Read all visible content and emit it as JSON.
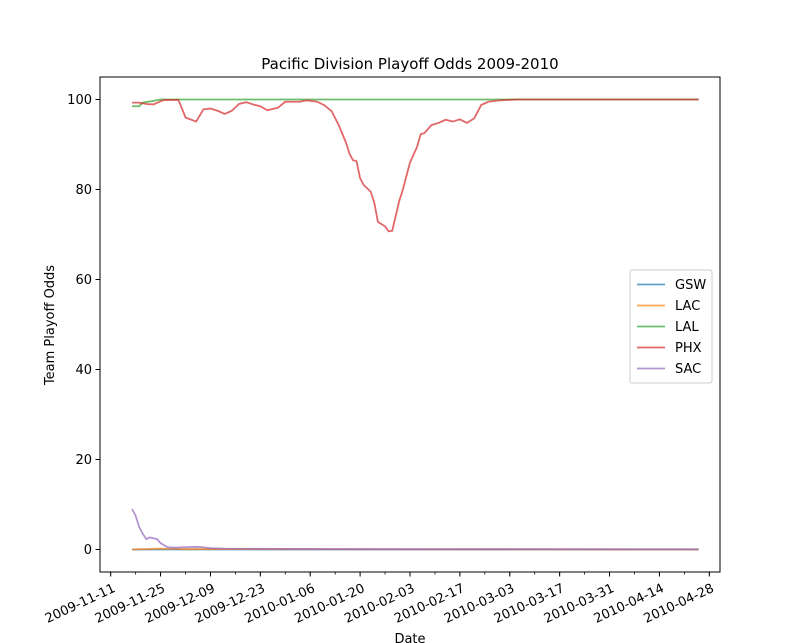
{
  "chart_data": {
    "type": "line",
    "title": "Pacific Division Playoff Odds 2009-2010",
    "xlabel": "Date",
    "ylabel": "Team Playoff Odds",
    "x_type": "date",
    "xlim": [
      "2009-11-08",
      "2010-05-01"
    ],
    "ylim": [
      -5,
      105
    ],
    "x_ticks": [
      "2009-11-11",
      "2009-11-25",
      "2009-12-09",
      "2009-12-23",
      "2010-01-06",
      "2010-01-20",
      "2010-02-03",
      "2010-02-17",
      "2010-03-03",
      "2010-03-17",
      "2010-03-31",
      "2010-04-14",
      "2010-04-28"
    ],
    "y_ticks": [
      0,
      20,
      40,
      60,
      80,
      100
    ],
    "grid": false,
    "legend_position": "center-right",
    "series": [
      {
        "name": "GSW",
        "color": "#1f77b4",
        "points": [
          [
            "2009-11-17",
            0
          ],
          [
            "2010-04-25",
            0
          ]
        ]
      },
      {
        "name": "LAC",
        "color": "#ff7f0e",
        "points": [
          [
            "2009-11-17",
            0
          ],
          [
            "2009-11-25",
            0.2
          ],
          [
            "2009-12-02",
            0.1
          ],
          [
            "2010-04-25",
            0
          ]
        ]
      },
      {
        "name": "LAL",
        "color": "#2ca02c",
        "points": [
          [
            "2009-11-17",
            98.5
          ],
          [
            "2009-11-19",
            98.5
          ],
          [
            "2009-11-20",
            99.3
          ],
          [
            "2009-11-23",
            99.7
          ],
          [
            "2009-11-25",
            100
          ],
          [
            "2010-04-25",
            100
          ]
        ]
      },
      {
        "name": "PHX",
        "color": "#d62728",
        "points": [
          [
            "2009-11-17",
            99.3
          ],
          [
            "2009-11-19",
            99.3
          ],
          [
            "2009-11-21",
            99.0
          ],
          [
            "2009-11-23",
            98.9
          ],
          [
            "2009-11-25",
            99.6
          ],
          [
            "2009-11-26",
            99.9
          ],
          [
            "2009-11-30",
            99.9
          ],
          [
            "2009-12-01",
            98.0
          ],
          [
            "2009-12-02",
            96.0
          ],
          [
            "2009-12-05",
            95.1
          ],
          [
            "2009-12-07",
            97.8
          ],
          [
            "2009-12-09",
            98.0
          ],
          [
            "2009-12-11",
            97.5
          ],
          [
            "2009-12-13",
            96.8
          ],
          [
            "2009-12-15",
            97.5
          ],
          [
            "2009-12-17",
            99.0
          ],
          [
            "2009-12-19",
            99.4
          ],
          [
            "2009-12-21",
            98.9
          ],
          [
            "2009-12-23",
            98.5
          ],
          [
            "2009-12-25",
            97.6
          ],
          [
            "2009-12-28",
            98.2
          ],
          [
            "2009-12-30",
            99.5
          ],
          [
            "2010-01-03",
            99.5
          ],
          [
            "2010-01-05",
            99.8
          ],
          [
            "2010-01-08",
            99.5
          ],
          [
            "2010-01-10",
            98.7
          ],
          [
            "2010-01-12",
            97.4
          ],
          [
            "2010-01-14",
            94.3
          ],
          [
            "2010-01-16",
            90.5
          ],
          [
            "2010-01-17",
            88.0
          ],
          [
            "2010-01-18",
            86.5
          ],
          [
            "2010-01-19",
            86.3
          ],
          [
            "2010-01-20",
            82.5
          ],
          [
            "2010-01-21",
            81.0
          ],
          [
            "2010-01-23",
            79.5
          ],
          [
            "2010-01-24",
            77.0
          ],
          [
            "2010-01-25",
            72.8
          ],
          [
            "2010-01-27",
            71.8
          ],
          [
            "2010-01-28",
            70.7
          ],
          [
            "2010-01-29",
            70.8
          ],
          [
            "2010-01-31",
            77.5
          ],
          [
            "2010-02-01",
            80.0
          ],
          [
            "2010-02-03",
            86.0
          ],
          [
            "2010-02-05",
            89.5
          ],
          [
            "2010-02-06",
            92.3
          ],
          [
            "2010-02-07",
            92.5
          ],
          [
            "2010-02-09",
            94.3
          ],
          [
            "2010-02-11",
            94.8
          ],
          [
            "2010-02-13",
            95.5
          ],
          [
            "2010-02-15",
            95.1
          ],
          [
            "2010-02-17",
            95.6
          ],
          [
            "2010-02-19",
            94.8
          ],
          [
            "2010-02-21",
            95.8
          ],
          [
            "2010-02-23",
            98.8
          ],
          [
            "2010-02-25",
            99.5
          ],
          [
            "2010-02-28",
            99.8
          ],
          [
            "2010-03-05",
            100
          ],
          [
            "2010-04-25",
            100
          ]
        ]
      },
      {
        "name": "SAC",
        "color": "#9467bd",
        "points": [
          [
            "2009-11-17",
            9.0
          ],
          [
            "2009-11-18",
            7.5
          ],
          [
            "2009-11-19",
            5.0
          ],
          [
            "2009-11-20",
            3.5
          ],
          [
            "2009-11-21",
            2.3
          ],
          [
            "2009-11-22",
            2.7
          ],
          [
            "2009-11-24",
            2.3
          ],
          [
            "2009-11-25",
            1.4
          ],
          [
            "2009-11-27",
            0.5
          ],
          [
            "2009-11-29",
            0.4
          ],
          [
            "2009-12-01",
            0.5
          ],
          [
            "2009-12-05",
            0.6
          ],
          [
            "2009-12-07",
            0.5
          ],
          [
            "2009-12-09",
            0.3
          ],
          [
            "2009-12-13",
            0.2
          ],
          [
            "2010-01-06",
            0.1
          ],
          [
            "2010-04-25",
            0.05
          ]
        ]
      }
    ]
  }
}
